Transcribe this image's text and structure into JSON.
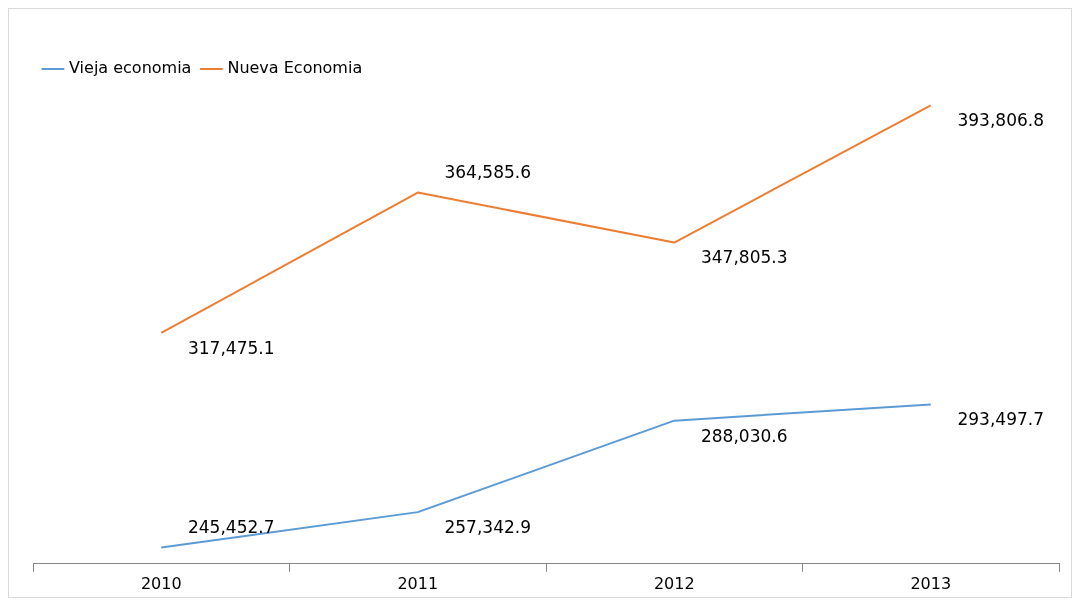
{
  "chart_data": {
    "type": "line",
    "categories": [
      "2010",
      "2011",
      "2012",
      "2013"
    ],
    "series": [
      {
        "name": "Vieja economia",
        "color": "#5b9bd5",
        "values": [
          245452.7,
          257342.9,
          288030.6,
          293497.7
        ],
        "value_labels": [
          "245,452.7",
          "257,342.9",
          "288,030.6",
          "293,497.7"
        ]
      },
      {
        "name": "Nueva Economia",
        "color": "#ed7d31",
        "values": [
          317475.1,
          364585.6,
          347805.3,
          393806.8
        ],
        "value_labels": [
          "317,475.1",
          "364,585.6",
          "347,805.3",
          "393,806.8"
        ]
      }
    ],
    "tick_labels": "x",
    "legend": "top left",
    "grid": false,
    "marker": "none"
  }
}
